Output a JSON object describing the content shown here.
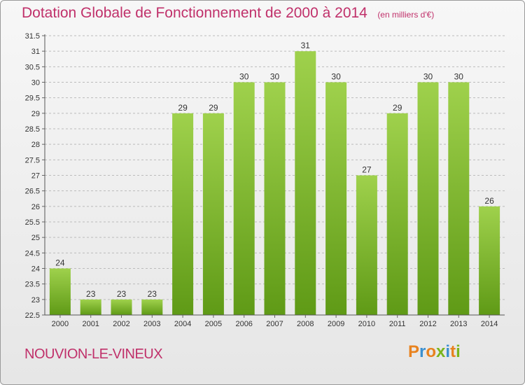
{
  "header": {
    "title": "Dotation Globale de Fonctionnement de 2000 à 2014",
    "unit": "(en milliers d'€)"
  },
  "footer": {
    "commune": "NOUVION-LE-VINEUX",
    "logo": "Proxiti"
  },
  "colors": {
    "title": "#c0306a",
    "bar_top": "#9fd14c",
    "bar_bottom": "#5f9a16",
    "grid": "#bbbbbb",
    "axis_text": "#333333"
  },
  "chart_data": {
    "type": "bar",
    "title": "Dotation Globale de Fonctionnement de 2000 à 2014",
    "xlabel": "",
    "ylabel": "",
    "categories": [
      "2000",
      "2001",
      "2002",
      "2003",
      "2004",
      "2005",
      "2006",
      "2007",
      "2008",
      "2009",
      "2010",
      "2011",
      "2012",
      "2013",
      "2014"
    ],
    "values": [
      24,
      23,
      23,
      23,
      29,
      29,
      30,
      30,
      31,
      30,
      27,
      29,
      30,
      30,
      26
    ],
    "ylim": [
      22.5,
      31.5
    ],
    "yticks": [
      "22.5",
      "23",
      "23.5",
      "24",
      "24.5",
      "25",
      "25.5",
      "26",
      "26.5",
      "27",
      "27.5",
      "28",
      "28.5",
      "29",
      "29.5",
      "30",
      "30.5",
      "31",
      "31.5"
    ],
    "grid": true
  }
}
